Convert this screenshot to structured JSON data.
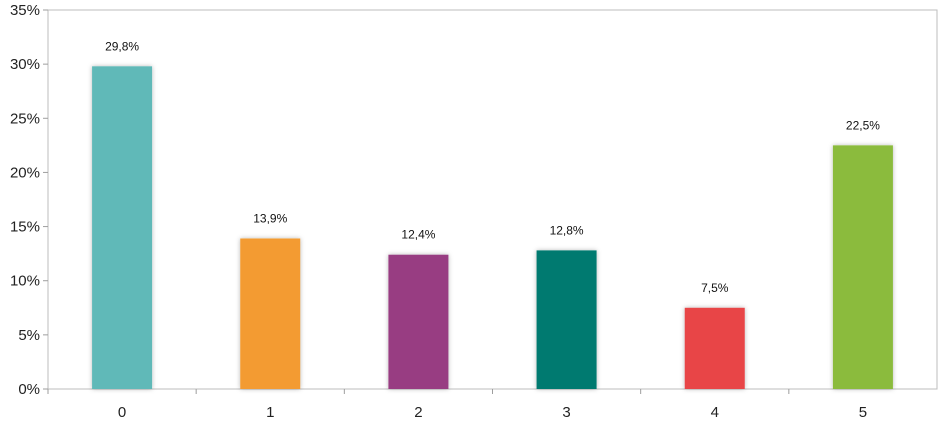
{
  "chart_data": {
    "type": "bar",
    "categories": [
      "0",
      "1",
      "2",
      "3",
      "4",
      "5"
    ],
    "values": [
      29.8,
      13.9,
      12.4,
      12.8,
      7.5,
      22.5
    ],
    "data_labels": [
      "29,8%",
      "13,9%",
      "12,4%",
      "12,8%",
      "7,5%",
      "22,5%"
    ],
    "colors": [
      "#60b9b8",
      "#f39b30",
      "#983d82",
      "#057a6f",
      "#e84447",
      "#8bbb3d"
    ],
    "ylim": [
      0,
      35
    ],
    "y_ticks": [
      0,
      5,
      10,
      15,
      20,
      25,
      30,
      35
    ],
    "y_tick_labels": [
      "0%",
      "5%",
      "10%",
      "15%",
      "20%",
      "25%",
      "30%",
      "35%"
    ],
    "grid": false,
    "title": "",
    "xlabel": "",
    "ylabel": ""
  }
}
